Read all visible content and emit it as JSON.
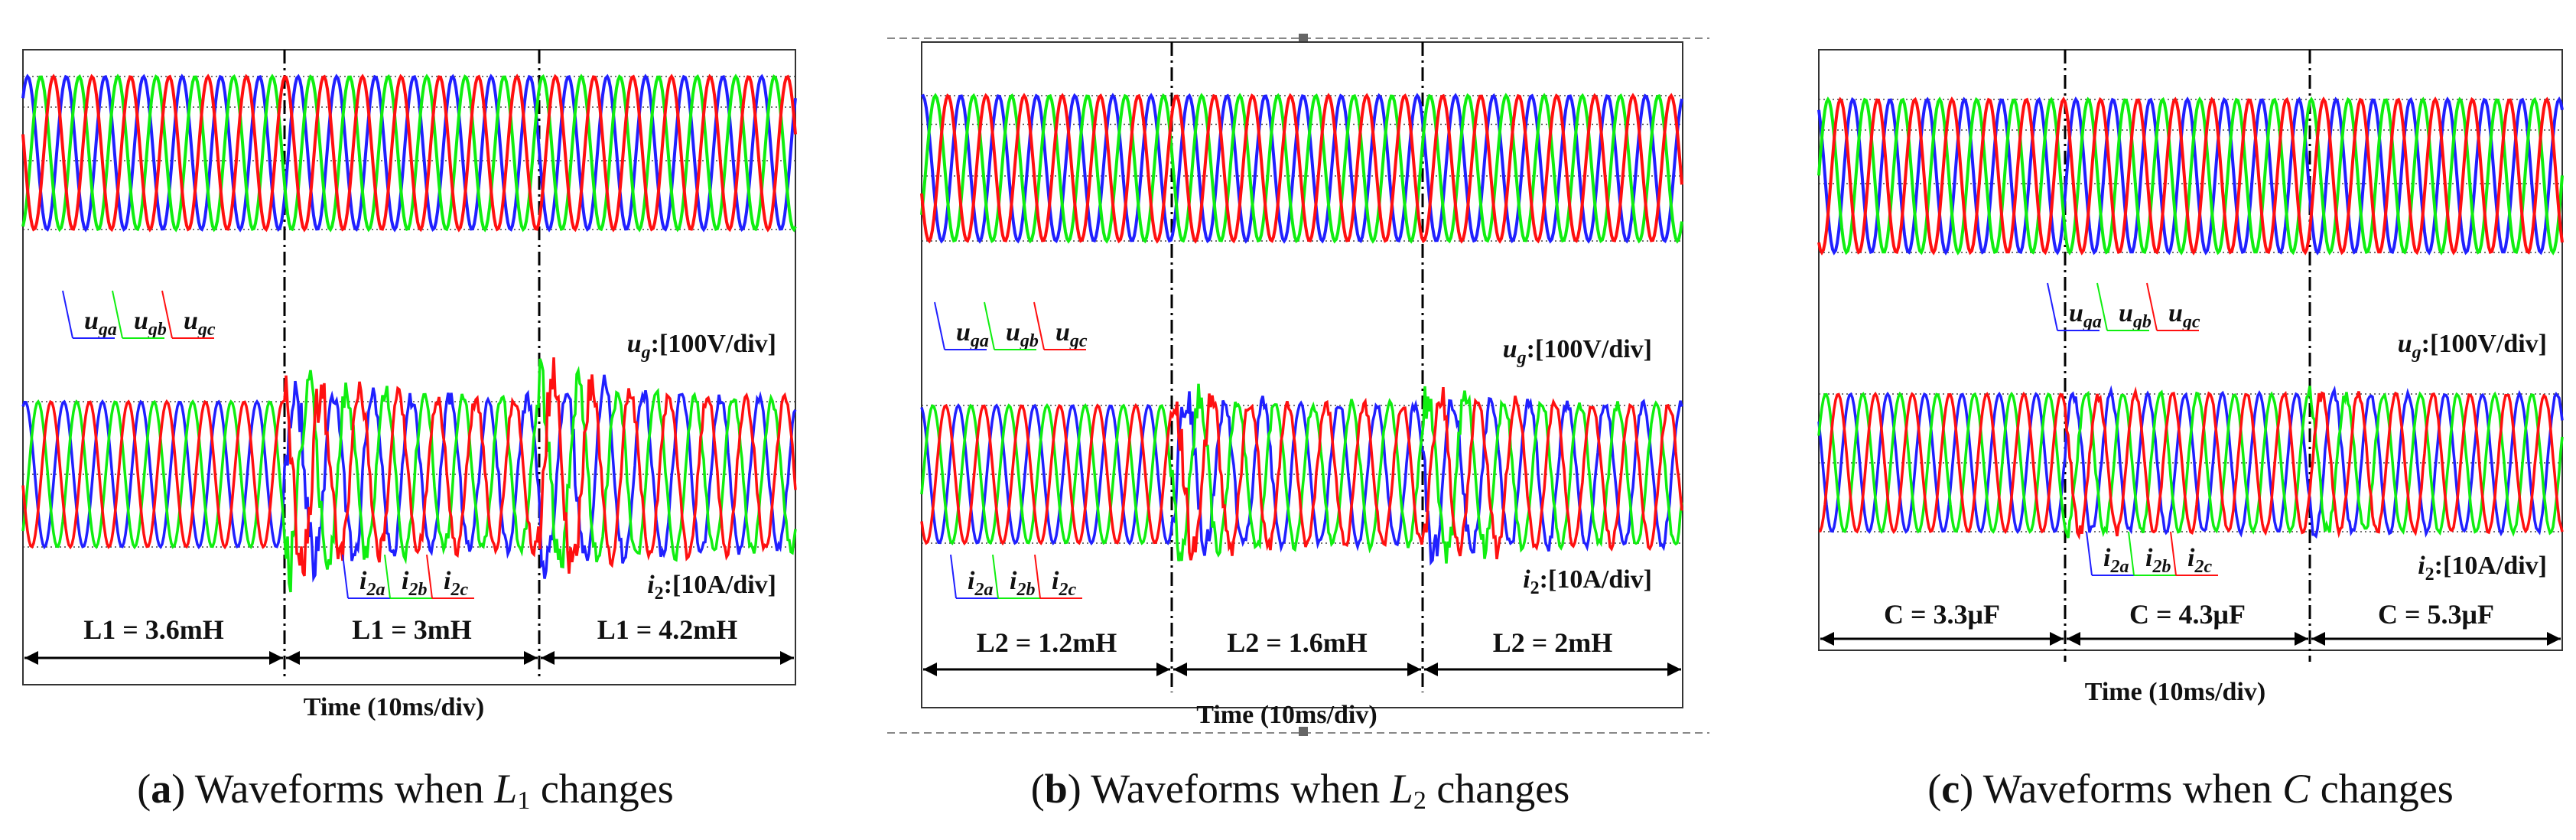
{
  "colors": {
    "phase_a": "#2020ff",
    "phase_b": "#10ee10",
    "phase_c": "#ff1010",
    "frame": "#000000"
  },
  "panels": [
    {
      "id": "a",
      "ug_scale_label": "[100V/div]",
      "i2_scale_label": "[10A/div]",
      "time_label": "Time (10ms/div)",
      "ug_phases": [
        "ga",
        "gb",
        "gc"
      ],
      "i2_phases": [
        "2a",
        "2b",
        "2c"
      ],
      "segments": [
        "L1 = 3.6mH",
        "L1 = 3mH",
        "L1 = 4.2mH"
      ],
      "caption": {
        "letter": "a",
        "text": " Waveforms when ",
        "var": "L",
        "sub": "1",
        "tail": " changes"
      }
    },
    {
      "id": "b",
      "ug_scale_label": "[100V/div]",
      "i2_scale_label": "[10A/div]",
      "time_label": "Time (10ms/div)",
      "ug_phases": [
        "ga",
        "gb",
        "gc"
      ],
      "i2_phases": [
        "2a",
        "2b",
        "2c"
      ],
      "segments": [
        "L2 = 1.2mH",
        "L2 = 1.6mH",
        "L2 = 2mH"
      ],
      "caption": {
        "letter": "b",
        "text": " Waveforms when ",
        "var": "L",
        "sub": "2",
        "tail": " changes"
      }
    },
    {
      "id": "c",
      "ug_scale_label": "[100V/div]",
      "i2_scale_label": "[10A/div]",
      "time_label": "Time (10ms/div)",
      "ug_phases": [
        "ga",
        "gb",
        "gc"
      ],
      "i2_phases": [
        "2a",
        "2b",
        "2c"
      ],
      "segments": [
        "C = 3.3μF",
        "C = 4.3μF",
        "C = 5.3μF"
      ],
      "caption": {
        "letter": "c",
        "text": " Waveforms when ",
        "var": "C",
        "sub": "",
        "tail": " changes"
      }
    }
  ]
}
